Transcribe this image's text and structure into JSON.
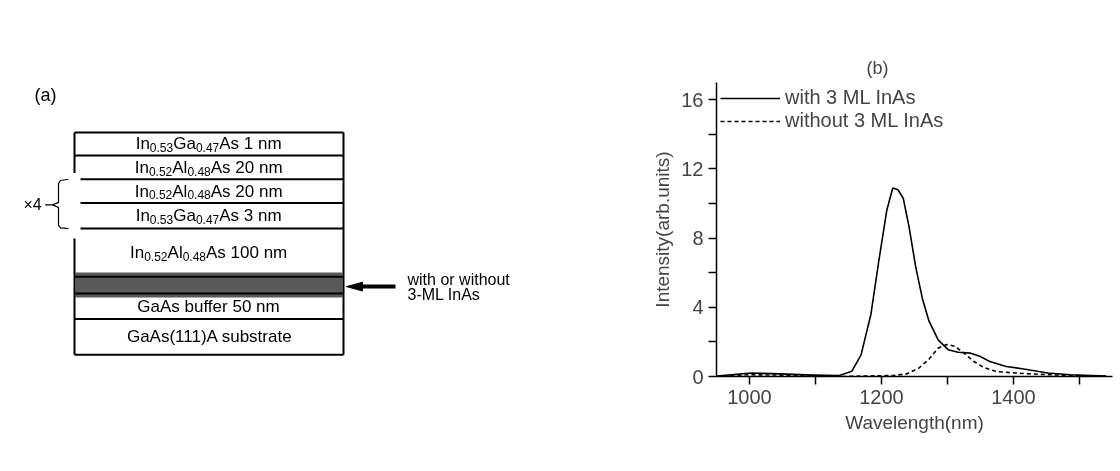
{
  "chart_data": [
    {
      "type": "other",
      "title": "(a)",
      "annotations": [
        "In$_{0.53}$Ga$_{0.47}$As  1 nm",
        "In$_{0.52}$Al$_{0.48}$As  20 nm",
        "In$_{0.52}$Al$_{0.48}$As  20 nm",
        "In$_{0.53}$Ga$_{0.47}$As  3 nm",
        "In$_{0.52}$Al$_{0.48}$As  100 nm",
        "GaAs buffer  50 nm",
        "GaAs(111)A substrate",
        "×4",
        "with or without\n3-ML InAs"
      ]
    },
    {
      "type": "line",
      "title": "(b)",
      "xlabel": "Wavelength(nm)",
      "ylabel": "Intensity(arb.units)",
      "xlim": [
        950,
        1550
      ],
      "ylim": [
        0,
        17
      ],
      "xticks": [
        1000,
        {
          "value": 1100,
          "label": null
        },
        1200,
        {
          "value": 1300,
          "label": null
        },
        1400,
        {
          "value": 1500,
          "label": null
        }
      ],
      "yticks": [
        0,
        {
          "value": 2,
          "label": null
        },
        4,
        {
          "value": 6,
          "label": null
        },
        8,
        {
          "value": 10,
          "label": null
        },
        12,
        {
          "value": 14,
          "label": null
        },
        16
      ],
      "grid": false,
      "legend": "top left",
      "series": [
        {
          "name": "with 3 ML InAs",
          "color": "#000000",
          "line_style": "solid",
          "x": [
            950,
            1003,
            1047,
            1096,
            1135,
            1155,
            1169,
            1184,
            1196,
            1208,
            1217,
            1225,
            1233,
            1242,
            1252,
            1262,
            1272,
            1286,
            1301,
            1316,
            1335,
            1350,
            1364,
            1389,
            1413,
            1452,
            1486,
            1540
          ],
          "values": [
            0.02,
            0.2,
            0.15,
            0.08,
            0.05,
            0.3,
            1.25,
            3.6,
            6.7,
            9.6,
            10.9,
            10.8,
            10.3,
            8.6,
            6.3,
            4.5,
            3.2,
            2.1,
            1.55,
            1.4,
            1.35,
            1.15,
            0.87,
            0.58,
            0.45,
            0.2,
            0.1,
            0.02
          ]
        },
        {
          "name": "without 3 ML InAs",
          "color": "#000000",
          "line_style": "dotted",
          "x": [
            950,
            1000,
            1050,
            1100,
            1145,
            1218,
            1238,
            1257,
            1272,
            1286,
            1299,
            1311,
            1325,
            1340,
            1355,
            1374,
            1403,
            1438,
            1486,
            1540
          ],
          "values": [
            0.0,
            0.1,
            0.08,
            0.02,
            0.0,
            0.06,
            0.15,
            0.5,
            1.0,
            1.65,
            1.85,
            1.75,
            1.35,
            0.87,
            0.52,
            0.29,
            0.2,
            0.13,
            0.06,
            0.02
          ]
        }
      ]
    }
  ]
}
